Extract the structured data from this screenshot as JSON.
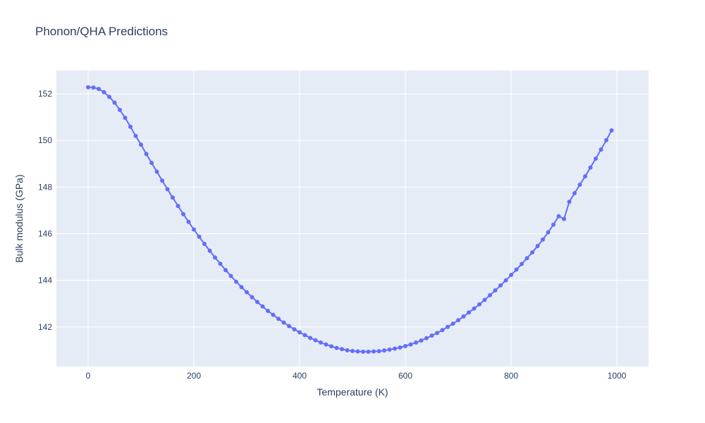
{
  "chart_data": {
    "type": "line",
    "title": "Phonon/QHA Predictions",
    "xlabel": "Temperature (K)",
    "ylabel": "Bulk modulus (GPa)",
    "xlim": [
      -60,
      1060
    ],
    "ylim": [
      140.3,
      153.0
    ],
    "x_ticks": [
      0,
      200,
      400,
      600,
      800,
      1000
    ],
    "y_ticks": [
      142,
      144,
      146,
      148,
      150,
      152
    ],
    "grid": true,
    "legend": "none",
    "colors": {
      "line": "#636efa",
      "plot_bg": "#e5ecf6",
      "grid": "#ffffff",
      "text": "#2a3f5f"
    },
    "series": [
      {
        "mode": "lines+markers",
        "x": [
          0,
          10,
          20,
          30,
          40,
          50,
          60,
          70,
          80,
          90,
          100,
          110,
          120,
          130,
          140,
          150,
          160,
          170,
          180,
          190,
          200,
          210,
          220,
          230,
          240,
          250,
          260,
          270,
          280,
          290,
          300,
          310,
          320,
          330,
          340,
          350,
          360,
          370,
          380,
          390,
          400,
          410,
          420,
          430,
          440,
          450,
          460,
          470,
          480,
          490,
          500,
          510,
          520,
          530,
          540,
          550,
          560,
          570,
          580,
          590,
          600,
          610,
          620,
          630,
          640,
          650,
          660,
          670,
          680,
          690,
          700,
          710,
          720,
          730,
          740,
          750,
          760,
          770,
          780,
          790,
          800,
          810,
          820,
          830,
          840,
          850,
          860,
          870,
          880,
          890,
          900,
          910,
          920,
          930,
          940,
          950,
          960,
          970,
          980,
          990
        ],
        "y": [
          152.28,
          152.27,
          152.21,
          152.07,
          151.87,
          151.62,
          151.31,
          150.97,
          150.59,
          150.19,
          149.82,
          149.42,
          149.04,
          148.66,
          148.28,
          147.91,
          147.55,
          147.19,
          146.84,
          146.51,
          146.18,
          145.87,
          145.56,
          145.27,
          144.98,
          144.71,
          144.44,
          144.19,
          143.94,
          143.71,
          143.49,
          143.28,
          143.07,
          142.88,
          142.69,
          142.52,
          142.35,
          142.19,
          142.04,
          141.9,
          141.77,
          141.65,
          141.53,
          141.43,
          141.33,
          141.25,
          141.17,
          141.1,
          141.05,
          141.0,
          140.97,
          140.95,
          140.94,
          140.94,
          140.95,
          140.96,
          140.99,
          141.03,
          141.07,
          141.12,
          141.18,
          141.25,
          141.33,
          141.42,
          141.52,
          141.63,
          141.74,
          141.87,
          142.0,
          142.14,
          142.29,
          142.45,
          142.62,
          142.79,
          142.97,
          143.16,
          143.36,
          143.57,
          143.78,
          144.0,
          144.23,
          144.46,
          144.7,
          144.95,
          145.2,
          145.47,
          145.75,
          146.06,
          146.39,
          146.75,
          146.63,
          147.37,
          147.74,
          148.1,
          148.46,
          148.84,
          149.22,
          149.61,
          150.01,
          150.43
        ]
      }
    ]
  }
}
